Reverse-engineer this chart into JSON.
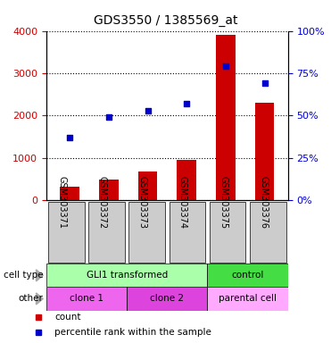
{
  "title": "GDS3550 / 1385569_at",
  "samples": [
    "GSM303371",
    "GSM303372",
    "GSM303373",
    "GSM303374",
    "GSM303375",
    "GSM303376"
  ],
  "counts": [
    320,
    490,
    680,
    950,
    3900,
    2300
  ],
  "percentiles": [
    37,
    49,
    53,
    57,
    79,
    69
  ],
  "ylim_left": [
    0,
    4000
  ],
  "ylim_right": [
    0,
    100
  ],
  "yticks_left": [
    0,
    1000,
    2000,
    3000,
    4000
  ],
  "yticks_right": [
    0,
    25,
    50,
    75,
    100
  ],
  "bar_color": "#cc0000",
  "dot_color": "#0000cc",
  "cell_type_row": {
    "label": "cell type",
    "groups": [
      {
        "text": "GLI1 transformed",
        "span": [
          0,
          4
        ],
        "color": "#aaffaa"
      },
      {
        "text": "control",
        "span": [
          4,
          6
        ],
        "color": "#44dd44"
      }
    ]
  },
  "other_row": {
    "label": "other",
    "groups": [
      {
        "text": "clone 1",
        "span": [
          0,
          2
        ],
        "color": "#ee66ee"
      },
      {
        "text": "clone 2",
        "span": [
          2,
          4
        ],
        "color": "#dd44dd"
      },
      {
        "text": "parental cell",
        "span": [
          4,
          6
        ],
        "color": "#ffaaff"
      }
    ]
  },
  "legend": [
    {
      "color": "#cc0000",
      "label": "count"
    },
    {
      "color": "#0000cc",
      "label": "percentile rank within the sample"
    }
  ],
  "tick_label_color_left": "#cc0000",
  "tick_label_color_right": "#0000cc",
  "sample_bg_color": "#cccccc"
}
